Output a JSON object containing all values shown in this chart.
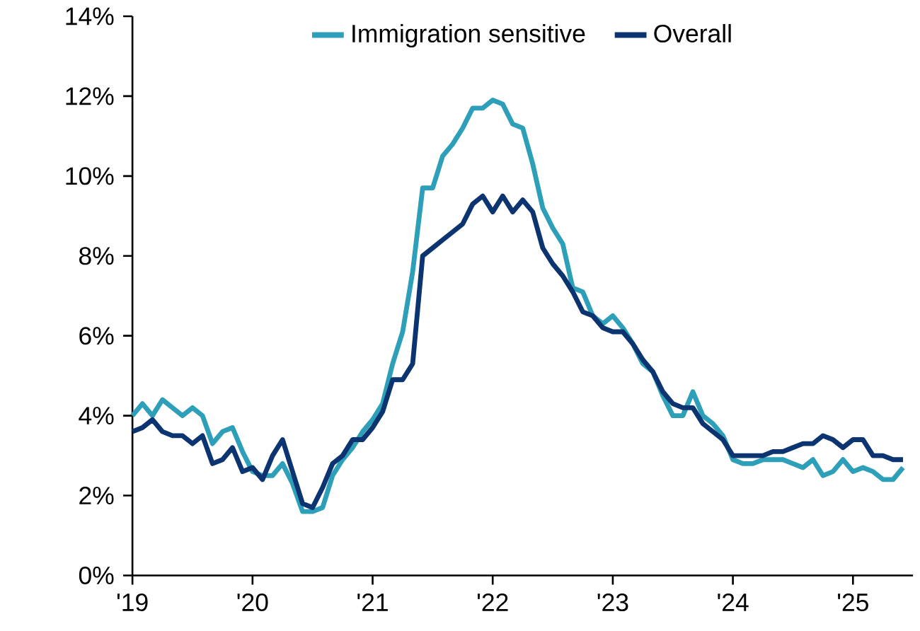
{
  "chart_data": {
    "type": "line",
    "x": [
      "2019-01",
      "2019-02",
      "2019-03",
      "2019-04",
      "2019-05",
      "2019-06",
      "2019-07",
      "2019-08",
      "2019-09",
      "2019-10",
      "2019-11",
      "2019-12",
      "2020-01",
      "2020-02",
      "2020-03",
      "2020-04",
      "2020-05",
      "2020-06",
      "2020-07",
      "2020-08",
      "2020-09",
      "2020-10",
      "2020-11",
      "2020-12",
      "2021-01",
      "2021-02",
      "2021-03",
      "2021-04",
      "2021-05",
      "2021-06",
      "2021-07",
      "2021-08",
      "2021-09",
      "2021-10",
      "2021-11",
      "2021-12",
      "2022-01",
      "2022-02",
      "2022-03",
      "2022-04",
      "2022-05",
      "2022-06",
      "2022-07",
      "2022-08",
      "2022-09",
      "2022-10",
      "2022-11",
      "2022-12",
      "2023-01",
      "2023-02",
      "2023-03",
      "2023-04",
      "2023-05",
      "2023-06",
      "2023-07",
      "2023-08",
      "2023-09",
      "2023-10",
      "2023-11",
      "2023-12",
      "2024-01",
      "2024-02",
      "2024-03",
      "2024-04",
      "2024-05",
      "2024-06",
      "2024-07",
      "2024-08",
      "2024-09",
      "2024-10",
      "2024-11",
      "2024-12",
      "2025-01",
      "2025-02",
      "2025-03",
      "2025-04",
      "2025-05",
      "2025-06"
    ],
    "series": [
      {
        "name": "Immigration sensitive",
        "color": "#2e9fb8",
        "values": [
          4.0,
          4.3,
          4.0,
          4.4,
          4.2,
          4.0,
          4.2,
          4.0,
          3.3,
          3.6,
          3.7,
          3.1,
          2.6,
          2.5,
          2.5,
          2.8,
          2.3,
          1.6,
          1.6,
          1.7,
          2.5,
          2.9,
          3.2,
          3.6,
          3.9,
          4.3,
          5.3,
          6.1,
          7.6,
          9.7,
          9.7,
          10.5,
          10.8,
          11.2,
          11.7,
          11.7,
          11.9,
          11.8,
          11.3,
          11.2,
          10.3,
          9.2,
          8.7,
          8.3,
          7.2,
          7.1,
          6.5,
          6.3,
          6.5,
          6.2,
          5.8,
          5.3,
          5.1,
          4.5,
          4.0,
          4.0,
          4.6,
          4.0,
          3.8,
          3.5,
          2.9,
          2.8,
          2.8,
          2.9,
          2.9,
          2.9,
          2.8,
          2.7,
          2.9,
          2.5,
          2.6,
          2.9,
          2.6,
          2.7,
          2.6,
          2.4,
          2.4,
          2.7
        ]
      },
      {
        "name": "Overall",
        "color": "#0b3470",
        "values": [
          3.6,
          3.7,
          3.9,
          3.6,
          3.5,
          3.5,
          3.3,
          3.5,
          2.8,
          2.9,
          3.2,
          2.6,
          2.7,
          2.4,
          3.0,
          3.4,
          2.6,
          1.8,
          1.7,
          2.2,
          2.8,
          3.0,
          3.4,
          3.4,
          3.7,
          4.1,
          4.9,
          4.9,
          5.3,
          8.0,
          8.2,
          8.4,
          8.6,
          8.8,
          9.3,
          9.5,
          9.1,
          9.5,
          9.1,
          9.4,
          9.1,
          8.2,
          7.8,
          7.5,
          7.1,
          6.6,
          6.5,
          6.2,
          6.1,
          6.1,
          5.8,
          5.4,
          5.1,
          4.6,
          4.3,
          4.2,
          4.2,
          3.8,
          3.6,
          3.4,
          3.0,
          3.0,
          3.0,
          3.0,
          3.1,
          3.1,
          3.2,
          3.3,
          3.3,
          3.5,
          3.4,
          3.2,
          3.4,
          3.4,
          3.0,
          3.0,
          2.9,
          2.9
        ]
      }
    ],
    "xlim": [
      "2019-01",
      "2025-07"
    ],
    "xticks": [
      {
        "value": "2019-01",
        "label": "'19"
      },
      {
        "value": "2020-01",
        "label": "'20"
      },
      {
        "value": "2021-01",
        "label": "'21"
      },
      {
        "value": "2022-01",
        "label": "'22"
      },
      {
        "value": "2023-01",
        "label": "'23"
      },
      {
        "value": "2024-01",
        "label": "'24"
      },
      {
        "value": "2025-01",
        "label": "'25"
      }
    ],
    "ylim": [
      0,
      14
    ],
    "yticks": [
      {
        "value": 0,
        "label": "0%"
      },
      {
        "value": 2,
        "label": "2%"
      },
      {
        "value": 4,
        "label": "4%"
      },
      {
        "value": 6,
        "label": "6%"
      },
      {
        "value": 8,
        "label": "8%"
      },
      {
        "value": 10,
        "label": "10%"
      },
      {
        "value": 12,
        "label": "12%"
      },
      {
        "value": 14,
        "label": "14%"
      }
    ],
    "legend": "top",
    "grid": false,
    "marker": "none",
    "line_style": "solid"
  }
}
